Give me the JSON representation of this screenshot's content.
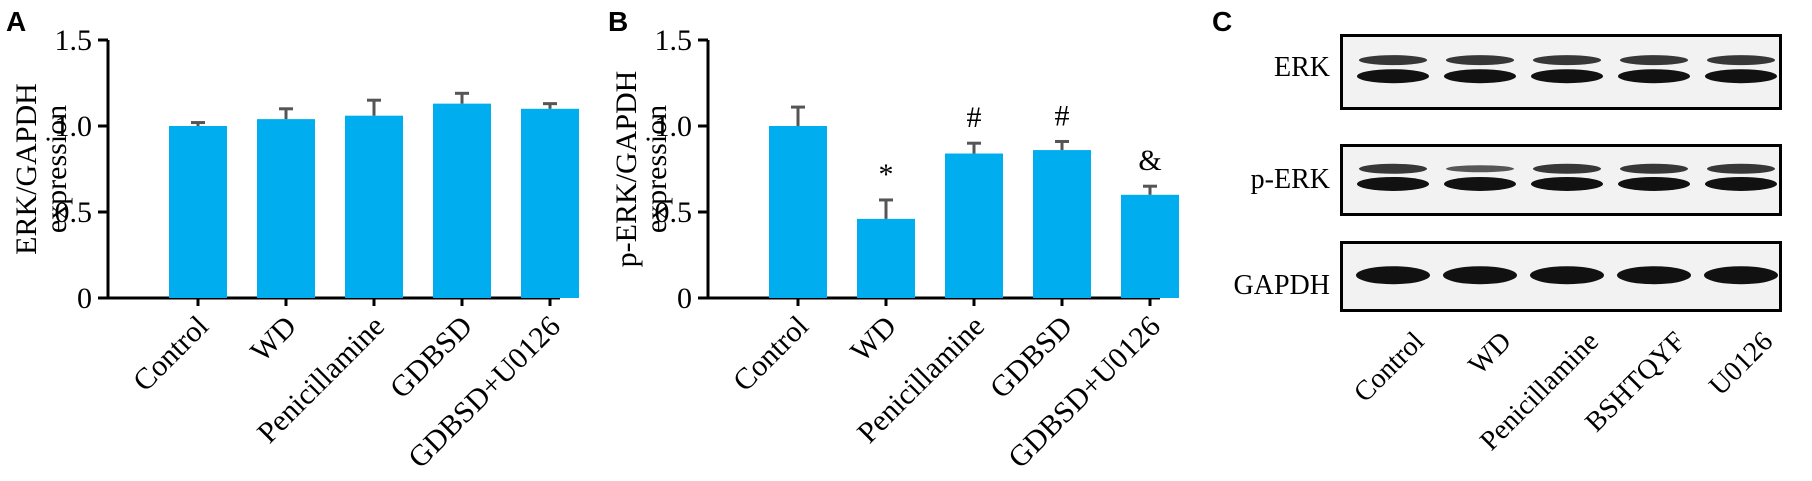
{
  "panels": {
    "A": {
      "letter": "A"
    },
    "B": {
      "letter": "B"
    },
    "C": {
      "letter": "C"
    }
  },
  "chart_data": [
    {
      "type": "bar",
      "panel": "A",
      "ylabel_line1": "ERK/GAPDH",
      "ylabel_line2": "expression",
      "categories": [
        "Control",
        "WD",
        "Penicillamine",
        "GDBSD",
        "GDBSD+U0126"
      ],
      "values": [
        1.0,
        1.04,
        1.06,
        1.13,
        1.1
      ],
      "errors": [
        0.02,
        0.06,
        0.09,
        0.06,
        0.03
      ],
      "annotations": [
        "",
        "",
        "",
        "",
        ""
      ],
      "ylim": [
        0,
        1.5
      ],
      "yticks": [
        0,
        0.5,
        1.0,
        1.5
      ],
      "ytick_labels": [
        "0",
        "0.5",
        "1.0",
        "1.5"
      ],
      "bar_color": "#00aeef"
    },
    {
      "type": "bar",
      "panel": "B",
      "ylabel_line1": "p-ERK/GAPDH",
      "ylabel_line2": "expression",
      "categories": [
        "Control",
        "WD",
        "Penicillamine",
        "GDBSD",
        "GDBSD+U0126"
      ],
      "values": [
        1.0,
        0.46,
        0.84,
        0.86,
        0.6
      ],
      "errors": [
        0.11,
        0.11,
        0.06,
        0.05,
        0.05
      ],
      "annotations": [
        "",
        "*",
        "#",
        "#",
        "&"
      ],
      "ylim": [
        0,
        1.5
      ],
      "yticks": [
        0,
        0.5,
        1.0,
        1.5
      ],
      "ytick_labels": [
        "0",
        "0.5",
        "1.0",
        "1.5"
      ],
      "bar_color": "#00aeef"
    }
  ],
  "blot": {
    "rows": [
      {
        "label": "ERK",
        "bands": 2
      },
      {
        "label": "p-ERK",
        "bands": 2
      },
      {
        "label": "GAPDH",
        "bands": 1
      }
    ],
    "lanes": [
      "Control",
      "WD",
      "Penicillamine",
      "BSHTQYF",
      "U0126"
    ]
  }
}
